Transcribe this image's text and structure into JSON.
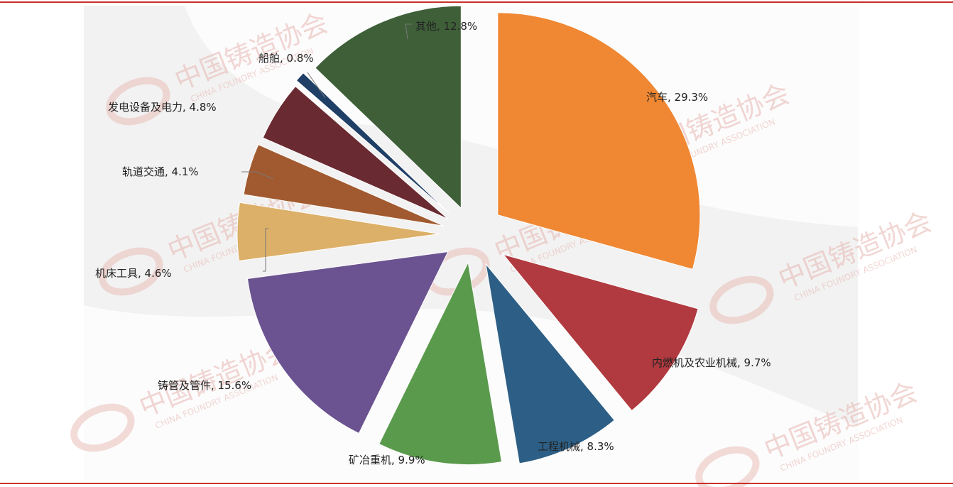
{
  "chart_data": {
    "type": "pie",
    "exploded": true,
    "start_angle_deg": 0,
    "direction": "clockwise",
    "slices": [
      {
        "label": "汽车, 29.3%",
        "name": "汽车",
        "value": 29.3,
        "color": "#ef8733"
      },
      {
        "label": "内燃机及农业机械, 9.7%",
        "name": "内燃机及农业机械",
        "value": 9.7,
        "color": "#b03a3f"
      },
      {
        "label": "工程机械, 8.3%",
        "name": "工程机械",
        "value": 8.3,
        "color": "#2d5f86"
      },
      {
        "label": "矿冶重机, 9.9%",
        "name": "矿冶重机",
        "value": 9.9,
        "color": "#5a9a4c"
      },
      {
        "label": "铸管及管件, 15.6%",
        "name": "铸管及管件",
        "value": 15.6,
        "color": "#6b5290"
      },
      {
        "label": "机床工具, 4.6%",
        "name": "机床工具",
        "value": 4.6,
        "color": "#dcb068"
      },
      {
        "label": "轨道交通, 4.1%",
        "name": "轨道交通",
        "value": 4.1,
        "color": "#a15a2f"
      },
      {
        "label": "发电设备及电力, 4.8%",
        "name": "发电设备及电力",
        "value": 4.8,
        "color": "#6a2a31"
      },
      {
        "label": "船舶, 0.8%",
        "name": "船舶",
        "value": 0.8,
        "color": "#1f3f66"
      },
      {
        "label": "其他, 12.8%",
        "name": "其他",
        "value": 12.8,
        "color": "#3f5f39"
      }
    ]
  },
  "watermark": {
    "text_cn": "中国铸造协会",
    "text_en": "CHINA FOUNDRY ASSOCIATION",
    "logo": "CFA",
    "color": "#e7b7b2"
  },
  "colors": {
    "rule": "#c9302c",
    "plot_background": "#f2f2f2"
  }
}
